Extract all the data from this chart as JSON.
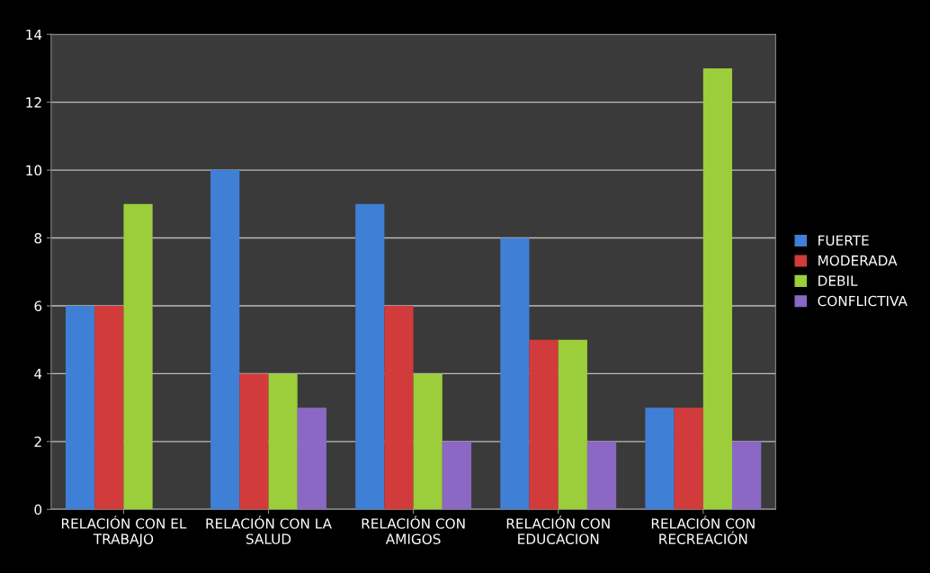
{
  "chart_data": {
    "type": "bar",
    "categories": [
      "RELACIÓN CON EL\nTRABAJO",
      "RELACIÓN CON LA\nSALUD",
      "RELACIÓN CON\nAMIGOS",
      "RELACIÓN CON\nEDUCACION",
      "RELACIÓN CON\nRECREACIÓN"
    ],
    "series": [
      {
        "name": "FUERTE",
        "color": "#3f7fd6",
        "values": [
          6,
          10,
          9,
          8,
          3
        ]
      },
      {
        "name": "MODERADA",
        "color": "#d23b3b",
        "values": [
          6,
          4,
          6,
          5,
          3
        ]
      },
      {
        "name": "DEBIL",
        "color": "#9ccd3a",
        "values": [
          9,
          4,
          4,
          5,
          13
        ]
      },
      {
        "name": "CONFLICTIVA",
        "color": "#8a68c4",
        "values": [
          null,
          3,
          2,
          2,
          2
        ]
      }
    ],
    "ylim": [
      0,
      14
    ],
    "yticks": [
      0,
      2,
      4,
      6,
      8,
      10,
      12,
      14
    ],
    "grid": "y",
    "legend": "right"
  }
}
